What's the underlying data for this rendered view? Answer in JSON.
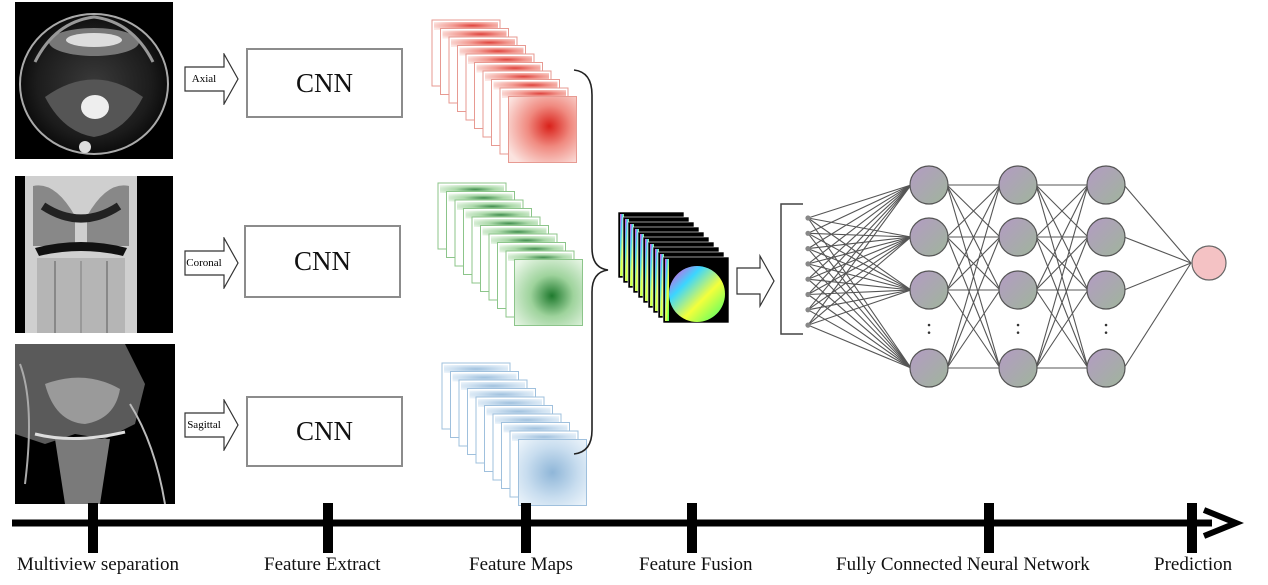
{
  "views": [
    {
      "label": "Axial"
    },
    {
      "label": "Coronal"
    },
    {
      "label": "Sagittal"
    }
  ],
  "cnn_label": "CNN",
  "feature_map_colors": [
    "#e8473c",
    "#3a9a46",
    "#8fb6d8"
  ],
  "fully_connected": {
    "input_nodes": 8,
    "hidden_layers": 3,
    "node_color": "#b7a6c0",
    "output_node_color": "#f4c2c4",
    "ellipsis": ":"
  },
  "timeline": {
    "stages": [
      "Multiview separation",
      "Feature Extract",
      "Feature Maps",
      "Feature Fusion",
      "Fully Connected Neural Network",
      "Prediction"
    ]
  }
}
